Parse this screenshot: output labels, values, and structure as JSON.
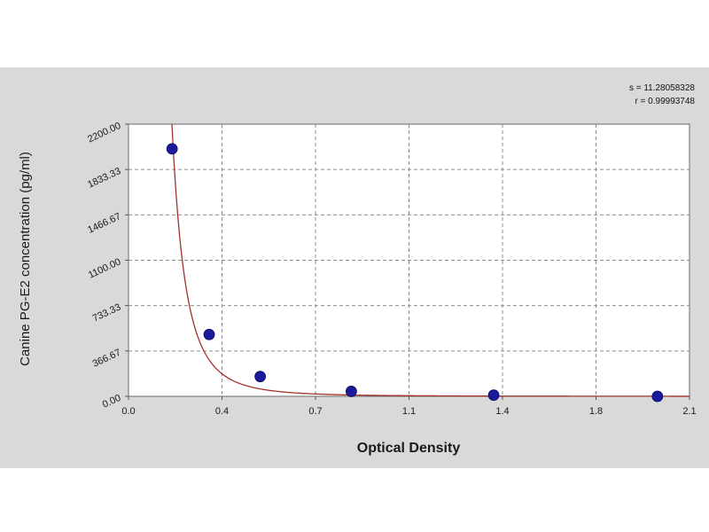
{
  "chart_data": {
    "type": "scatter",
    "title": "",
    "xlabel": "Optical Density",
    "ylabel": "Canine PG-E2 concentration (pg/ml)",
    "xlim": [
      0.0,
      2.1
    ],
    "ylim": [
      0.0,
      2200.0
    ],
    "x_ticks": [
      "0.0",
      "0.4",
      "0.7",
      "1.1",
      "1.4",
      "1.8",
      "2.1"
    ],
    "y_ticks": [
      "0.00",
      "366.67",
      "733.33",
      "1100.00",
      "1466.67",
      "1833.33",
      "2200.00"
    ],
    "grid": true,
    "series": [
      {
        "points": [
          {
            "x": 0.163,
            "y": 2000
          },
          {
            "x": 0.302,
            "y": 500
          },
          {
            "x": 0.493,
            "y": 160
          },
          {
            "x": 0.834,
            "y": 40
          },
          {
            "x": 1.367,
            "y": 10
          },
          {
            "x": 1.98,
            "y": 0
          }
        ],
        "marker_color": "#1a1a9c"
      }
    ],
    "fit_curve": {
      "type": "power",
      "a": 6.0,
      "b": -3.25,
      "color": "#a0322a"
    },
    "fit_stats": {
      "s_line": "s = 11.28058328",
      "r_line": "r = 0.99993748"
    }
  },
  "colors": {
    "panel_background": "#d9d9d9",
    "plot_background": "#ffffff",
    "grid": "#8c8c8c",
    "axis": "#555555",
    "curve": "#a0322a",
    "marker": "#1a1a9c"
  }
}
